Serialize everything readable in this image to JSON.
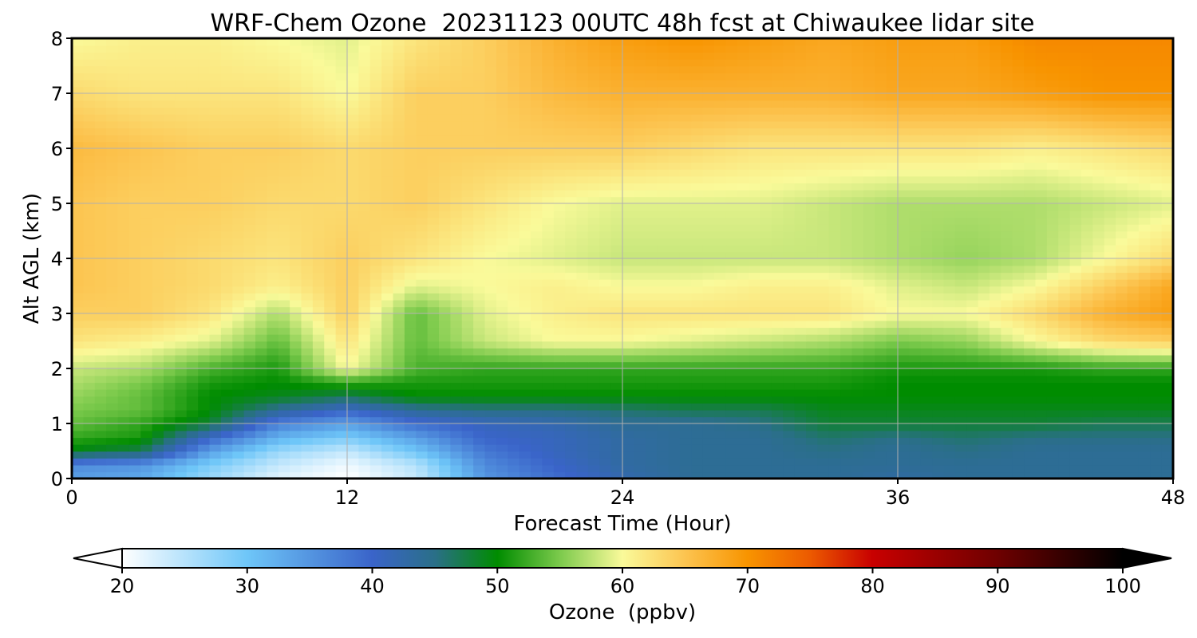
{
  "chart_data": {
    "type": "heatmap",
    "title": "WRF-Chem Ozone  20231123 00UTC 48h fcst at Chiwaukee lidar site",
    "xlabel": "Forecast Time (Hour)",
    "ylabel": "Alt AGL (km)",
    "xlim": [
      0,
      48
    ],
    "ylim": [
      0,
      8
    ],
    "xticks": [
      0,
      12,
      24,
      36,
      48
    ],
    "yticks": [
      0,
      1,
      2,
      3,
      4,
      5,
      6,
      7,
      8
    ],
    "grid": true,
    "colorbar": {
      "label": "Ozone  (ppbv)",
      "orientation": "horizontal",
      "placement": "bottom",
      "extend": "both",
      "min": 20,
      "max": 100,
      "ticks": [
        20,
        30,
        40,
        50,
        60,
        70,
        80,
        90,
        100
      ],
      "stops": [
        {
          "value": 20,
          "color": "#ffffff"
        },
        {
          "value": 30,
          "color": "#6ec6f8"
        },
        {
          "value": 40,
          "color": "#3a64c9"
        },
        {
          "value": 45,
          "color": "#2a6f88"
        },
        {
          "value": 50,
          "color": "#008c00"
        },
        {
          "value": 55,
          "color": "#7cca4c"
        },
        {
          "value": 60,
          "color": "#fafa9a"
        },
        {
          "value": 65,
          "color": "#fcc450"
        },
        {
          "value": 70,
          "color": "#f89400"
        },
        {
          "value": 75,
          "color": "#ec5a00"
        },
        {
          "value": 80,
          "color": "#c80000"
        },
        {
          "value": 90,
          "color": "#6e0000"
        },
        {
          "value": 100,
          "color": "#000000"
        }
      ]
    },
    "x": [
      0,
      3,
      6,
      9,
      12,
      15,
      18,
      21,
      24,
      27,
      30,
      33,
      36,
      39,
      42,
      45,
      48
    ],
    "y": [
      0,
      0.25,
      0.5,
      0.75,
      1,
      1.25,
      1.5,
      1.75,
      2,
      2.5,
      3,
      3.5,
      4,
      5,
      6,
      7,
      8
    ],
    "z": [
      [
        34,
        33,
        27,
        22,
        20,
        24,
        35,
        39,
        42,
        44,
        44,
        44,
        43,
        44,
        44,
        44,
        44
      ],
      [
        36,
        35,
        29,
        24,
        21,
        25,
        36,
        40,
        43,
        44,
        44,
        44,
        44,
        44,
        44,
        44,
        44
      ],
      [
        49,
        47,
        34,
        27,
        24,
        30,
        38,
        41,
        43,
        44,
        44,
        45,
        44,
        45,
        44,
        44,
        44
      ],
      [
        52,
        51,
        40,
        32,
        29,
        34,
        40,
        41,
        43,
        44,
        44,
        46,
        45,
        46,
        45,
        45,
        45
      ],
      [
        54,
        52,
        48,
        37,
        34,
        39,
        41,
        42,
        44,
        44,
        45,
        48,
        48,
        48,
        48,
        47,
        47
      ],
      [
        55,
        54,
        50,
        44,
        40,
        44,
        45,
        45,
        46,
        47,
        47,
        49,
        49,
        49,
        49,
        49,
        49
      ],
      [
        56,
        54,
        50,
        49,
        47,
        50,
        50,
        50,
        50,
        50,
        50,
        50,
        50,
        50,
        50,
        50,
        50
      ],
      [
        57,
        55,
        51,
        50,
        52,
        51,
        51,
        51,
        51,
        51,
        51,
        51,
        50,
        50,
        50,
        50,
        50
      ],
      [
        58,
        57,
        53,
        51,
        60,
        53,
        52,
        52,
        52,
        52,
        52,
        52,
        51,
        51,
        51,
        52,
        52
      ],
      [
        62,
        61,
        59,
        54,
        62,
        54,
        58,
        60,
        60,
        59,
        58,
        57,
        55,
        56,
        60,
        63,
        64
      ],
      [
        64,
        64,
        62,
        57,
        64,
        54,
        59,
        61,
        62,
        62,
        62,
        62,
        60,
        60,
        63,
        67,
        69
      ],
      [
        65,
        64,
        63,
        61,
        64,
        59,
        60,
        61,
        60,
        60,
        61,
        61,
        59,
        58,
        60,
        64,
        68
      ],
      [
        65,
        64,
        63,
        62,
        64,
        62,
        60,
        59,
        58,
        58,
        58,
        58,
        57,
        56,
        57,
        60,
        63
      ],
      [
        65,
        64,
        64,
        63,
        63,
        64,
        62,
        60,
        59,
        59,
        59,
        58,
        57,
        57,
        57,
        58,
        59
      ],
      [
        66,
        65,
        64,
        64,
        63,
        64,
        64,
        64,
        64,
        63,
        62,
        62,
        62,
        62,
        61,
        62,
        63
      ],
      [
        63,
        62,
        62,
        62,
        60,
        64,
        64,
        66,
        67,
        67,
        67,
        67,
        68,
        68,
        69,
        70,
        70
      ],
      [
        60,
        61,
        61,
        60,
        59,
        62,
        64,
        67,
        69,
        70,
        69,
        68,
        69,
        69,
        71,
        71,
        71
      ]
    ]
  }
}
